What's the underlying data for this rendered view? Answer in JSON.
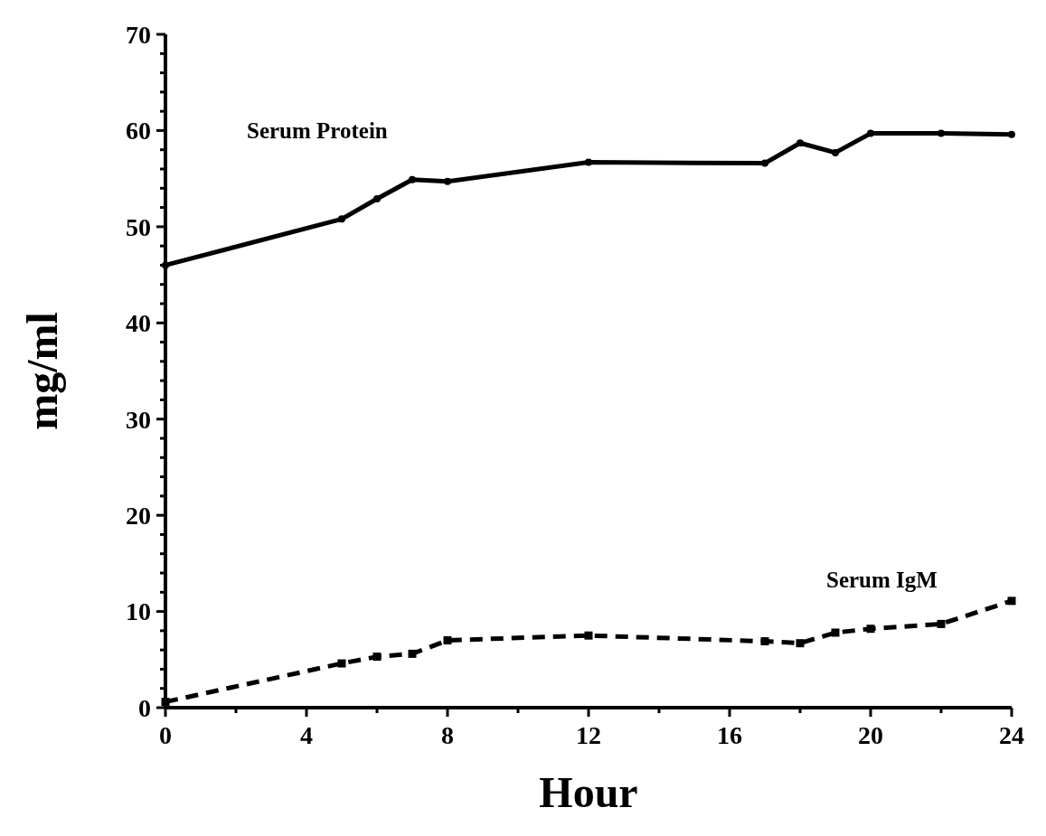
{
  "chart_data": {
    "type": "line",
    "xlabel": "Hour",
    "ylabel": "mg/ml",
    "xlim": [
      0,
      24
    ],
    "ylim": [
      0,
      70
    ],
    "xticks": [
      0,
      {
        "value": 2,
        "label": null
      },
      4,
      {
        "value": 6,
        "label": null
      },
      8,
      {
        "value": 10,
        "label": null
      },
      12,
      {
        "value": 14,
        "label": null
      },
      16,
      {
        "value": 18,
        "label": null
      },
      20,
      {
        "value": 22,
        "label": null
      },
      24
    ],
    "yticks": [
      0,
      {
        "value": 2,
        "label": null
      },
      {
        "value": 4,
        "label": null
      },
      {
        "value": 6,
        "label": null
      },
      {
        "value": 8,
        "label": null
      },
      10,
      {
        "value": 12,
        "label": null
      },
      {
        "value": 14,
        "label": null
      },
      {
        "value": 16,
        "label": null
      },
      {
        "value": 18,
        "label": null
      },
      20,
      {
        "value": 22,
        "label": null
      },
      {
        "value": 24,
        "label": null
      },
      {
        "value": 26,
        "label": null
      },
      {
        "value": 28,
        "label": null
      },
      30,
      {
        "value": 32,
        "label": null
      },
      {
        "value": 34,
        "label": null
      },
      {
        "value": 36,
        "label": null
      },
      {
        "value": 38,
        "label": null
      },
      40,
      {
        "value": 42,
        "label": null
      },
      {
        "value": 44,
        "label": null
      },
      {
        "value": 46,
        "label": null
      },
      {
        "value": 48,
        "label": null
      },
      50,
      {
        "value": 52,
        "label": null
      },
      {
        "value": 54,
        "label": null
      },
      {
        "value": 56,
        "label": null
      },
      {
        "value": 58,
        "label": null
      },
      60,
      {
        "value": 62,
        "label": null
      },
      {
        "value": 64,
        "label": null
      },
      {
        "value": 66,
        "label": null
      },
      {
        "value": 68,
        "label": null
      },
      70
    ],
    "x": [
      0,
      5,
      6,
      7,
      8,
      12,
      17,
      18,
      19,
      20,
      22,
      24
    ],
    "series": [
      {
        "name": "Serum Protein",
        "color": "#000000",
        "marker": "circle",
        "line_style": "solid",
        "values": [
          46,
          50.8,
          52.9,
          54.9,
          54.7,
          56.7,
          56.6,
          58.7,
          57.7,
          59.7,
          59.7,
          59.6
        ]
      },
      {
        "name": "Serum IgM",
        "color": "#000000",
        "marker": "square",
        "line_style": "dashed",
        "values": [
          0.6,
          4.6,
          5.3,
          5.6,
          7.0,
          7.5,
          6.9,
          6.7,
          7.8,
          8.2,
          8.7,
          11.1
        ]
      }
    ]
  }
}
